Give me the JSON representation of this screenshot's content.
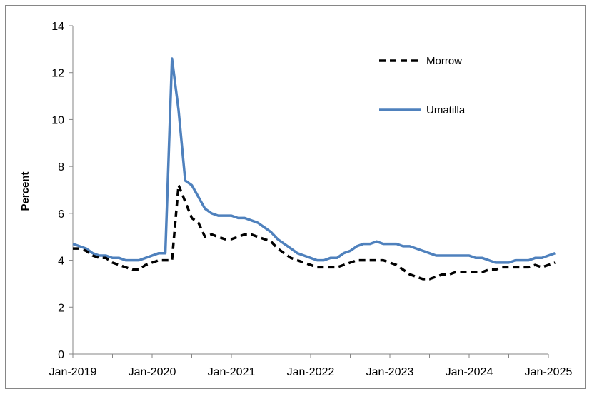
{
  "chart_data": {
    "type": "line",
    "title": "",
    "xlabel": "",
    "ylabel": "Percent",
    "ylim": [
      0,
      14
    ],
    "yticks": [
      0,
      2,
      4,
      6,
      8,
      10,
      12,
      14
    ],
    "xticks": [
      "Jan-2019",
      "Jan-2020",
      "Jan-2021",
      "Jan-2022",
      "Jan-2023",
      "Jan-2024",
      "Jan-2025"
    ],
    "grid": false,
    "legend_position": "upper-right",
    "x_start": "Jan-2019",
    "x_end": "Jan-2025",
    "series": [
      {
        "name": "Morrow",
        "color": "#000000",
        "style": "dashed",
        "values": [
          4.5,
          4.5,
          4.4,
          4.2,
          4.1,
          4.1,
          3.9,
          3.8,
          3.7,
          3.6,
          3.6,
          3.8,
          3.9,
          4.0,
          4.0,
          4.0,
          7.2,
          6.5,
          5.8,
          5.6,
          5.0,
          5.1,
          5.0,
          4.9,
          4.9,
          5.0,
          5.1,
          5.1,
          5.0,
          4.9,
          4.8,
          4.5,
          4.3,
          4.1,
          4.0,
          3.9,
          3.8,
          3.7,
          3.7,
          3.7,
          3.7,
          3.8,
          3.9,
          4.0,
          4.0,
          4.0,
          4.0,
          4.0,
          3.9,
          3.8,
          3.6,
          3.4,
          3.3,
          3.2,
          3.2,
          3.3,
          3.4,
          3.4,
          3.5,
          3.5,
          3.5,
          3.5,
          3.5,
          3.6,
          3.6,
          3.7,
          3.7,
          3.7,
          3.7,
          3.7,
          3.8,
          3.7,
          3.8,
          3.9
        ]
      },
      {
        "name": "Umatilla",
        "color": "#4f81bd",
        "style": "solid",
        "values": [
          4.7,
          4.6,
          4.5,
          4.3,
          4.2,
          4.2,
          4.1,
          4.1,
          4.0,
          4.0,
          4.0,
          4.1,
          4.2,
          4.3,
          4.3,
          12.6,
          10.4,
          7.4,
          7.2,
          6.7,
          6.2,
          6.0,
          5.9,
          5.9,
          5.9,
          5.8,
          5.8,
          5.7,
          5.6,
          5.4,
          5.2,
          4.9,
          4.7,
          4.5,
          4.3,
          4.2,
          4.1,
          4.0,
          4.0,
          4.1,
          4.1,
          4.3,
          4.4,
          4.6,
          4.7,
          4.7,
          4.8,
          4.7,
          4.7,
          4.7,
          4.6,
          4.6,
          4.5,
          4.4,
          4.3,
          4.2,
          4.2,
          4.2,
          4.2,
          4.2,
          4.2,
          4.1,
          4.1,
          4.0,
          3.9,
          3.9,
          3.9,
          4.0,
          4.0,
          4.0,
          4.1,
          4.1,
          4.2,
          4.3
        ]
      }
    ]
  }
}
